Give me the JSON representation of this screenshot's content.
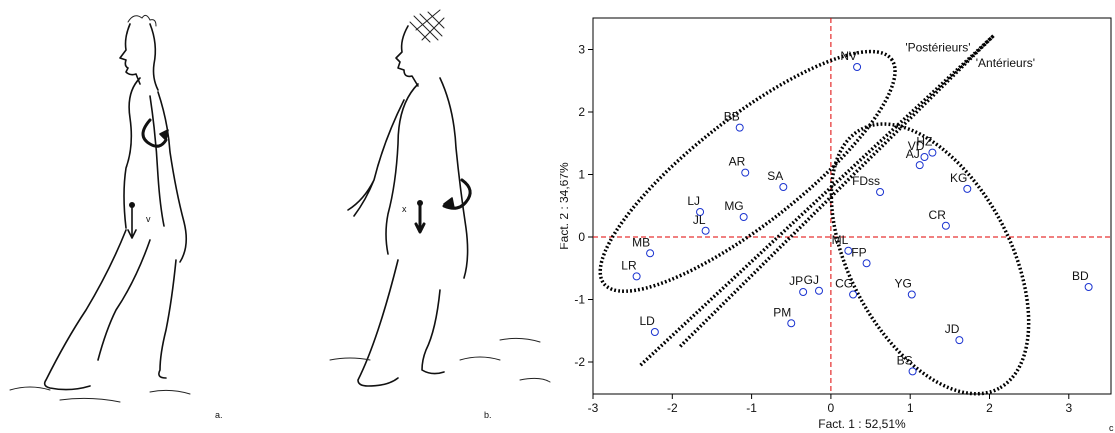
{
  "figure": {
    "panel_a_label": "a.",
    "panel_b_label": "b.",
    "corner_mark": "c"
  },
  "chart_data": {
    "type": "scatter",
    "title": "",
    "xlabel": "Fact. 1 : 52,51%",
    "ylabel": "Fact. 2 : 34,67%",
    "xlim": [
      -3,
      3.5
    ],
    "ylim": [
      -2.5,
      3.5
    ],
    "xticks": [
      -3,
      -2,
      -1,
      0,
      1,
      2,
      3
    ],
    "yticks": [
      -2,
      -1,
      0,
      1,
      2,
      3
    ],
    "points": [
      {
        "label": "NV",
        "x": 0.33,
        "y": 2.72
      },
      {
        "label": "BB",
        "x": -1.15,
        "y": 1.75
      },
      {
        "label": "AR",
        "x": -1.08,
        "y": 1.03
      },
      {
        "label": "SA",
        "x": -0.6,
        "y": 0.8
      },
      {
        "label": "LJ",
        "x": -1.65,
        "y": 0.4
      },
      {
        "label": "JL",
        "x": -1.58,
        "y": 0.1
      },
      {
        "label": "MG",
        "x": -1.1,
        "y": 0.32
      },
      {
        "label": "MB",
        "x": -2.28,
        "y": -0.26
      },
      {
        "label": "LR",
        "x": -2.45,
        "y": -0.63
      },
      {
        "label": "LD",
        "x": -2.22,
        "y": -1.52
      },
      {
        "label": "HZ",
        "x": 1.28,
        "y": 1.35
      },
      {
        "label": "VD",
        "x": 1.18,
        "y": 1.28
      },
      {
        "label": "AJ",
        "x": 1.12,
        "y": 1.15
      },
      {
        "label": "KG",
        "x": 1.72,
        "y": 0.77
      },
      {
        "label": "FDss",
        "x": 0.62,
        "y": 0.72
      },
      {
        "label": "CR",
        "x": 1.45,
        "y": 0.18
      },
      {
        "label": "ML",
        "x": 0.22,
        "y": -0.22
      },
      {
        "label": "FP",
        "x": 0.45,
        "y": -0.42
      },
      {
        "label": "JP",
        "x": -0.35,
        "y": -0.88
      },
      {
        "label": "GJ",
        "x": -0.15,
        "y": -0.86
      },
      {
        "label": "CG",
        "x": 0.28,
        "y": -0.92
      },
      {
        "label": "YG",
        "x": 1.02,
        "y": -0.92
      },
      {
        "label": "PM",
        "x": -0.5,
        "y": -1.38
      },
      {
        "label": "JD",
        "x": 1.62,
        "y": -1.65
      },
      {
        "label": "BS",
        "x": 1.03,
        "y": -2.15
      },
      {
        "label": "BD",
        "x": 3.25,
        "y": -0.8
      }
    ],
    "reference_lines": {
      "x": 0,
      "y": 0
    },
    "ellipses": [
      {
        "cx": -1.05,
        "cy": 1.05,
        "rx": 2.3,
        "ry": 0.85,
        "angle_deg": 38
      },
      {
        "cx": 1.25,
        "cy": -0.35,
        "rx": 1.85,
        "ry": 1.28,
        "angle_deg": -62
      }
    ],
    "separator_lines": [
      {
        "x1": -2.4,
        "y1": -2.05,
        "x2": 2.05,
        "y2": 3.22
      },
      {
        "x1": -1.9,
        "y1": -1.75,
        "x2": 2.05,
        "y2": 3.22
      }
    ],
    "annotations": [
      {
        "text": "'Postérieurs'",
        "x": 1.35,
        "y": 2.97
      },
      {
        "text": "'Antérieurs'",
        "x": 2.2,
        "y": 2.72
      }
    ]
  }
}
